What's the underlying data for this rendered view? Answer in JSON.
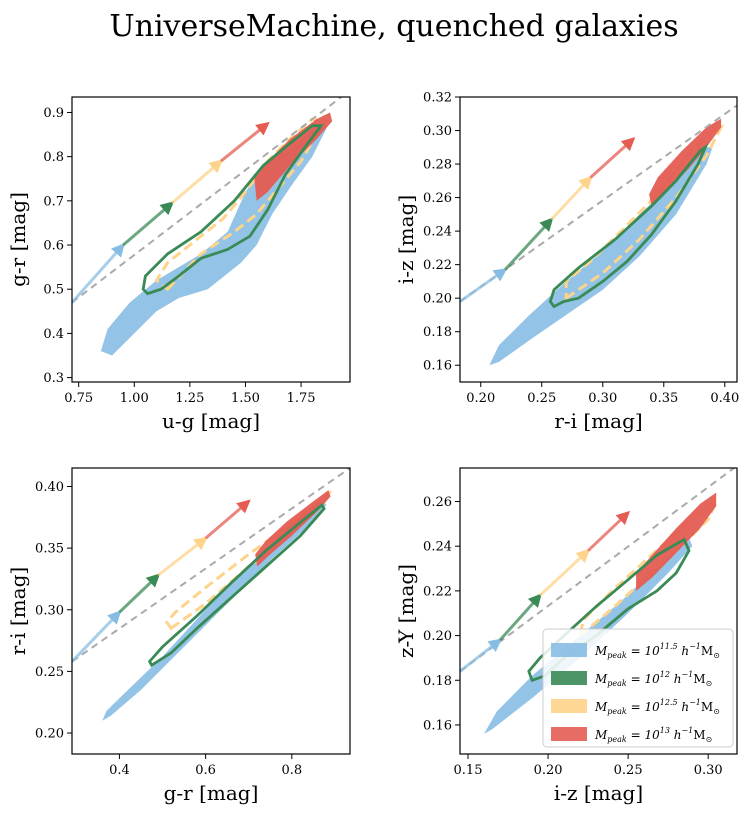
{
  "title": "UniverseMachine, quenched galaxies",
  "colors": {
    "blue": "#87bde3",
    "green": "#3a8a55",
    "orange": "#fed38a",
    "red": "#e45c52",
    "dash": "#aaaaaa"
  },
  "legend": [
    {
      "name": "legend-item-11p5",
      "color": "#87bde3",
      "label": "M_peak = 10^11.5 h^-1 M_sun"
    },
    {
      "name": "legend-item-12",
      "color": "#3a8a55",
      "label": "M_peak = 10^12 h^-1 M_sun"
    },
    {
      "name": "legend-item-12p5",
      "color": "#fed38a",
      "label": "M_peak = 10^12.5 h^-1 M_sun"
    },
    {
      "name": "legend-item-13",
      "color": "#e45c52",
      "label": "M_peak = 10^13 h^-1 M_sun"
    }
  ],
  "chart_data": [
    {
      "type": "scatter",
      "id": "ug-gr",
      "xlabel": "u-g [mag]",
      "ylabel": "g-r [mag]",
      "xlim": [
        0.72,
        1.97
      ],
      "ylim": [
        0.29,
        0.935
      ],
      "xticks": [
        "0.75",
        "1.00",
        "1.25",
        "1.50",
        "1.75"
      ],
      "xtick_values": [
        0.75,
        1.0,
        1.25,
        1.5,
        1.75
      ],
      "yticks": [
        "0.3",
        "0.4",
        "0.5",
        "0.6",
        "0.7",
        "0.8",
        "0.9"
      ],
      "ytick_values": [
        0.3,
        0.4,
        0.5,
        0.6,
        0.7,
        0.8,
        0.9
      ],
      "dashed_line": [
        [
          0.72,
          0.47
        ],
        [
          1.97,
          0.95
        ]
      ],
      "arrows": [
        {
          "color": "blue",
          "from": [
            0.72,
            0.47
          ],
          "to": [
            0.95,
            0.6
          ]
        },
        {
          "color": "green",
          "from": [
            0.95,
            0.6
          ],
          "to": [
            1.17,
            0.695
          ]
        },
        {
          "color": "orange",
          "from": [
            1.17,
            0.695
          ],
          "to": [
            1.39,
            0.79
          ]
        },
        {
          "color": "red",
          "from": [
            1.39,
            0.79
          ],
          "to": [
            1.6,
            0.875
          ]
        }
      ],
      "blue_fill": [
        [
          0.85,
          0.36
        ],
        [
          0.9,
          0.35
        ],
        [
          1.0,
          0.4
        ],
        [
          1.1,
          0.45
        ],
        [
          1.2,
          0.48
        ],
        [
          1.33,
          0.5
        ],
        [
          1.48,
          0.56
        ],
        [
          1.55,
          0.6
        ],
        [
          1.62,
          0.67
        ],
        [
          1.7,
          0.73
        ],
        [
          1.8,
          0.8
        ],
        [
          1.87,
          0.87
        ],
        [
          1.82,
          0.87
        ],
        [
          1.7,
          0.82
        ],
        [
          1.58,
          0.78
        ],
        [
          1.5,
          0.72
        ],
        [
          1.42,
          0.63
        ],
        [
          1.3,
          0.58
        ],
        [
          1.2,
          0.55
        ],
        [
          1.1,
          0.52
        ],
        [
          0.98,
          0.47
        ],
        [
          0.88,
          0.41
        ]
      ],
      "red_fill": [
        [
          1.55,
          0.7
        ],
        [
          1.6,
          0.72
        ],
        [
          1.7,
          0.78
        ],
        [
          1.82,
          0.84
        ],
        [
          1.89,
          0.88
        ],
        [
          1.88,
          0.9
        ],
        [
          1.82,
          0.885
        ],
        [
          1.7,
          0.84
        ],
        [
          1.6,
          0.79
        ],
        [
          1.54,
          0.75
        ]
      ],
      "orange_loop": [
        [
          1.15,
          0.5
        ],
        [
          1.3,
          0.58
        ],
        [
          1.45,
          0.63
        ],
        [
          1.55,
          0.67
        ],
        [
          1.65,
          0.73
        ],
        [
          1.75,
          0.79
        ],
        [
          1.82,
          0.85
        ],
        [
          1.86,
          0.88
        ],
        [
          1.8,
          0.885
        ],
        [
          1.7,
          0.84
        ],
        [
          1.6,
          0.79
        ],
        [
          1.5,
          0.72
        ],
        [
          1.4,
          0.66
        ],
        [
          1.25,
          0.6
        ],
        [
          1.15,
          0.56
        ],
        [
          1.1,
          0.52
        ]
      ],
      "green_loop": [
        [
          1.06,
          0.49
        ],
        [
          1.04,
          0.5
        ],
        [
          1.05,
          0.53
        ],
        [
          1.15,
          0.58
        ],
        [
          1.3,
          0.63
        ],
        [
          1.45,
          0.7
        ],
        [
          1.58,
          0.78
        ],
        [
          1.7,
          0.83
        ],
        [
          1.8,
          0.87
        ],
        [
          1.84,
          0.87
        ],
        [
          1.78,
          0.83
        ],
        [
          1.68,
          0.76
        ],
        [
          1.6,
          0.68
        ],
        [
          1.52,
          0.62
        ],
        [
          1.42,
          0.59
        ],
        [
          1.3,
          0.57
        ],
        [
          1.2,
          0.53
        ],
        [
          1.12,
          0.5
        ]
      ]
    },
    {
      "type": "scatter",
      "id": "ri-iz",
      "xlabel": "r-i [mag]",
      "ylabel": "i-z [mag]",
      "xlim": [
        0.183,
        0.41
      ],
      "ylim": [
        0.15,
        0.32
      ],
      "xticks": [
        "0.20",
        "0.25",
        "0.30",
        "0.35",
        "0.40"
      ],
      "xtick_values": [
        0.2,
        0.25,
        0.3,
        0.35,
        0.4
      ],
      "yticks": [
        "0.16",
        "0.18",
        "0.20",
        "0.22",
        "0.24",
        "0.26",
        "0.28",
        "0.30",
        "0.32"
      ],
      "ytick_values": [
        0.16,
        0.18,
        0.2,
        0.22,
        0.24,
        0.26,
        0.28,
        0.3,
        0.32
      ],
      "dashed_line": [
        [
          0.183,
          0.198
        ],
        [
          0.41,
          0.315
        ]
      ],
      "arrows": [
        {
          "color": "blue",
          "from": [
            0.183,
            0.198
          ],
          "to": [
            0.22,
            0.217
          ]
        },
        {
          "color": "green",
          "from": [
            0.22,
            0.217
          ],
          "to": [
            0.258,
            0.247
          ]
        },
        {
          "color": "orange",
          "from": [
            0.258,
            0.247
          ],
          "to": [
            0.29,
            0.272
          ]
        },
        {
          "color": "red",
          "from": [
            0.29,
            0.272
          ],
          "to": [
            0.325,
            0.295
          ]
        }
      ],
      "blue_fill": [
        [
          0.207,
          0.16
        ],
        [
          0.215,
          0.162
        ],
        [
          0.24,
          0.175
        ],
        [
          0.27,
          0.19
        ],
        [
          0.3,
          0.205
        ],
        [
          0.33,
          0.225
        ],
        [
          0.36,
          0.25
        ],
        [
          0.385,
          0.28
        ],
        [
          0.39,
          0.29
        ],
        [
          0.383,
          0.29
        ],
        [
          0.36,
          0.27
        ],
        [
          0.33,
          0.25
        ],
        [
          0.3,
          0.228
        ],
        [
          0.27,
          0.21
        ],
        [
          0.24,
          0.19
        ],
        [
          0.215,
          0.172
        ]
      ],
      "red_fill": [
        [
          0.34,
          0.255
        ],
        [
          0.35,
          0.262
        ],
        [
          0.37,
          0.277
        ],
        [
          0.385,
          0.29
        ],
        [
          0.397,
          0.302
        ],
        [
          0.397,
          0.307
        ],
        [
          0.385,
          0.302
        ],
        [
          0.365,
          0.288
        ],
        [
          0.345,
          0.272
        ],
        [
          0.338,
          0.262
        ]
      ],
      "orange_loop": [
        [
          0.27,
          0.2
        ],
        [
          0.3,
          0.215
        ],
        [
          0.33,
          0.235
        ],
        [
          0.36,
          0.26
        ],
        [
          0.385,
          0.285
        ],
        [
          0.397,
          0.302
        ],
        [
          0.39,
          0.3
        ],
        [
          0.37,
          0.285
        ],
        [
          0.345,
          0.262
        ],
        [
          0.315,
          0.24
        ],
        [
          0.29,
          0.222
        ],
        [
          0.27,
          0.21
        ]
      ],
      "green_loop": [
        [
          0.26,
          0.195
        ],
        [
          0.257,
          0.198
        ],
        [
          0.26,
          0.205
        ],
        [
          0.28,
          0.218
        ],
        [
          0.31,
          0.235
        ],
        [
          0.34,
          0.255
        ],
        [
          0.36,
          0.27
        ],
        [
          0.38,
          0.288
        ],
        [
          0.384,
          0.29
        ],
        [
          0.378,
          0.28
        ],
        [
          0.36,
          0.258
        ],
        [
          0.34,
          0.238
        ],
        [
          0.32,
          0.222
        ],
        [
          0.3,
          0.21
        ],
        [
          0.28,
          0.2
        ],
        [
          0.268,
          0.198
        ]
      ]
    },
    {
      "type": "scatter",
      "id": "gr-ri",
      "xlabel": "g-r [mag]",
      "ylabel": "r-i [mag]",
      "xlim": [
        0.29,
        0.935
      ],
      "ylim": [
        0.183,
        0.415
      ],
      "xticks": [
        "0.4",
        "0.6",
        "0.8"
      ],
      "xtick_values": [
        0.4,
        0.6,
        0.8
      ],
      "yticks": [
        "0.20",
        "0.25",
        "0.30",
        "0.35",
        "0.40"
      ],
      "ytick_values": [
        0.2,
        0.25,
        0.3,
        0.35,
        0.4
      ],
      "dashed_line": [
        [
          0.29,
          0.258
        ],
        [
          0.935,
          0.415
        ]
      ],
      "arrows": [
        {
          "color": "blue",
          "from": [
            0.29,
            0.258
          ],
          "to": [
            0.4,
            0.298
          ]
        },
        {
          "color": "green",
          "from": [
            0.4,
            0.298
          ],
          "to": [
            0.49,
            0.328
          ]
        },
        {
          "color": "orange",
          "from": [
            0.49,
            0.328
          ],
          "to": [
            0.6,
            0.358
          ]
        },
        {
          "color": "red",
          "from": [
            0.6,
            0.358
          ],
          "to": [
            0.7,
            0.388
          ]
        }
      ],
      "blue_fill": [
        [
          0.36,
          0.21
        ],
        [
          0.38,
          0.214
        ],
        [
          0.45,
          0.235
        ],
        [
          0.55,
          0.27
        ],
        [
          0.65,
          0.305
        ],
        [
          0.75,
          0.34
        ],
        [
          0.83,
          0.365
        ],
        [
          0.88,
          0.385
        ],
        [
          0.87,
          0.39
        ],
        [
          0.8,
          0.37
        ],
        [
          0.7,
          0.335
        ],
        [
          0.6,
          0.3
        ],
        [
          0.5,
          0.262
        ],
        [
          0.42,
          0.235
        ],
        [
          0.37,
          0.218
        ]
      ],
      "red_fill": [
        [
          0.72,
          0.335
        ],
        [
          0.75,
          0.345
        ],
        [
          0.8,
          0.36
        ],
        [
          0.86,
          0.38
        ],
        [
          0.89,
          0.392
        ],
        [
          0.885,
          0.397
        ],
        [
          0.85,
          0.388
        ],
        [
          0.79,
          0.372
        ],
        [
          0.74,
          0.356
        ],
        [
          0.715,
          0.345
        ]
      ],
      "orange_loop": [
        [
          0.52,
          0.285
        ],
        [
          0.6,
          0.305
        ],
        [
          0.7,
          0.335
        ],
        [
          0.8,
          0.362
        ],
        [
          0.87,
          0.385
        ],
        [
          0.89,
          0.396
        ],
        [
          0.88,
          0.393
        ],
        [
          0.8,
          0.37
        ],
        [
          0.7,
          0.345
        ],
        [
          0.6,
          0.318
        ],
        [
          0.53,
          0.298
        ],
        [
          0.51,
          0.29
        ]
      ],
      "green_loop": [
        [
          0.475,
          0.255
        ],
        [
          0.47,
          0.258
        ],
        [
          0.5,
          0.27
        ],
        [
          0.58,
          0.295
        ],
        [
          0.66,
          0.322
        ],
        [
          0.74,
          0.348
        ],
        [
          0.81,
          0.368
        ],
        [
          0.87,
          0.385
        ],
        [
          0.875,
          0.382
        ],
        [
          0.82,
          0.36
        ],
        [
          0.74,
          0.335
        ],
        [
          0.66,
          0.31
        ],
        [
          0.58,
          0.285
        ],
        [
          0.52,
          0.265
        ]
      ]
    },
    {
      "type": "scatter",
      "id": "iz-zY",
      "xlabel": "i-z [mag]",
      "ylabel": "z-Y [mag]",
      "xlim": [
        0.145,
        0.318
      ],
      "ylim": [
        0.147,
        0.275
      ],
      "xticks": [
        "0.15",
        "0.20",
        "0.25",
        "0.30"
      ],
      "xtick_values": [
        0.15,
        0.2,
        0.25,
        0.3
      ],
      "yticks": [
        "0.16",
        "0.18",
        "0.20",
        "0.22",
        "0.24",
        "0.26"
      ],
      "ytick_values": [
        0.16,
        0.18,
        0.2,
        0.22,
        0.24,
        0.26
      ],
      "dashed_line": [
        [
          0.145,
          0.184
        ],
        [
          0.318,
          0.276
        ]
      ],
      "arrows": [
        {
          "color": "blue",
          "from": [
            0.145,
            0.184
          ],
          "to": [
            0.17,
            0.198
          ]
        },
        {
          "color": "green",
          "from": [
            0.17,
            0.198
          ],
          "to": [
            0.195,
            0.218
          ]
        },
        {
          "color": "orange",
          "from": [
            0.195,
            0.218
          ],
          "to": [
            0.225,
            0.238
          ]
        },
        {
          "color": "red",
          "from": [
            0.225,
            0.238
          ],
          "to": [
            0.25,
            0.255
          ]
        }
      ],
      "blue_fill": [
        [
          0.16,
          0.156
        ],
        [
          0.165,
          0.158
        ],
        [
          0.19,
          0.172
        ],
        [
          0.22,
          0.19
        ],
        [
          0.25,
          0.21
        ],
        [
          0.275,
          0.228
        ],
        [
          0.29,
          0.24
        ],
        [
          0.288,
          0.244
        ],
        [
          0.27,
          0.232
        ],
        [
          0.245,
          0.215
        ],
        [
          0.22,
          0.2
        ],
        [
          0.19,
          0.182
        ],
        [
          0.168,
          0.166
        ]
      ],
      "red_fill": [
        [
          0.255,
          0.22
        ],
        [
          0.265,
          0.226
        ],
        [
          0.28,
          0.237
        ],
        [
          0.295,
          0.248
        ],
        [
          0.305,
          0.258
        ],
        [
          0.305,
          0.264
        ],
        [
          0.295,
          0.259
        ],
        [
          0.28,
          0.248
        ],
        [
          0.265,
          0.236
        ],
        [
          0.255,
          0.228
        ]
      ],
      "orange_loop": [
        [
          0.22,
          0.2
        ],
        [
          0.24,
          0.212
        ],
        [
          0.26,
          0.225
        ],
        [
          0.28,
          0.238
        ],
        [
          0.3,
          0.252
        ],
        [
          0.305,
          0.26
        ],
        [
          0.298,
          0.257
        ],
        [
          0.28,
          0.246
        ],
        [
          0.26,
          0.233
        ],
        [
          0.24,
          0.22
        ],
        [
          0.222,
          0.207
        ]
      ],
      "green_loop": [
        [
          0.19,
          0.18
        ],
        [
          0.188,
          0.184
        ],
        [
          0.195,
          0.19
        ],
        [
          0.21,
          0.2
        ],
        [
          0.23,
          0.213
        ],
        [
          0.25,
          0.225
        ],
        [
          0.268,
          0.236
        ],
        [
          0.285,
          0.243
        ],
        [
          0.288,
          0.238
        ],
        [
          0.28,
          0.228
        ],
        [
          0.268,
          0.22
        ],
        [
          0.25,
          0.212
        ],
        [
          0.23,
          0.2
        ],
        [
          0.21,
          0.19
        ],
        [
          0.198,
          0.182
        ]
      ]
    }
  ]
}
